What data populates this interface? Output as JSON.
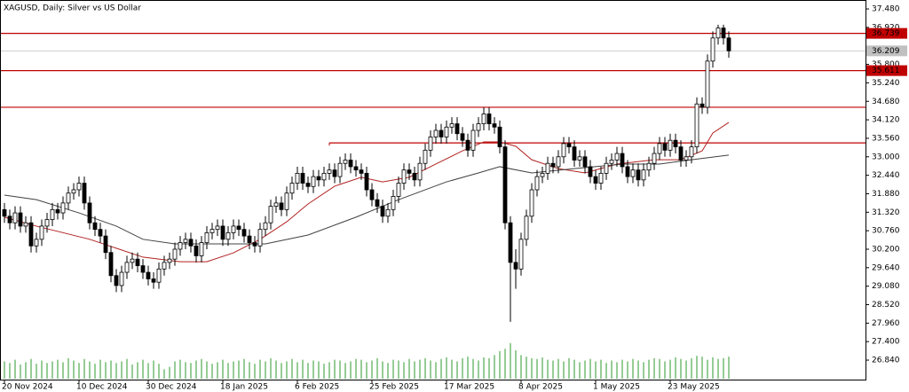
{
  "chart_data": {
    "type": "candlestick",
    "title": "XAGUSD, Daily:  Silver vs US Dollar",
    "up_color": "#ffffff",
    "down_color": "#000000",
    "volume_color": "#2e9a2e",
    "ylim": [
      26.25,
      37.75
    ],
    "yticks": [
      {
        "value": 37.48,
        "label": "37.480"
      },
      {
        "value": 36.92,
        "label": "36.920"
      },
      {
        "value": 35.8,
        "label": "35.800"
      },
      {
        "value": 35.24,
        "label": "35.240"
      },
      {
        "value": 34.68,
        "label": "34.680"
      },
      {
        "value": 34.12,
        "label": "34.120"
      },
      {
        "value": 33.56,
        "label": "33.560"
      },
      {
        "value": 33.0,
        "label": "33.000"
      },
      {
        "value": 32.44,
        "label": "32.440"
      },
      {
        "value": 31.88,
        "label": "31.880"
      },
      {
        "value": 31.32,
        "label": "31.320"
      },
      {
        "value": 30.76,
        "label": "30.760"
      },
      {
        "value": 30.2,
        "label": "30.200"
      },
      {
        "value": 29.64,
        "label": "29.640"
      },
      {
        "value": 29.08,
        "label": "29.080"
      },
      {
        "value": 28.52,
        "label": "28.520"
      },
      {
        "value": 27.96,
        "label": "27.960"
      },
      {
        "value": 27.4,
        "label": "27.400"
      },
      {
        "value": 26.84,
        "label": "26.840"
      }
    ],
    "xticks": [
      {
        "value": 0,
        "label": "20 Nov 2024"
      },
      {
        "value": 14,
        "label": "10 Dec 2024"
      },
      {
        "value": 27,
        "label": "30 Dec 2024"
      },
      {
        "value": 41,
        "label": "18 Jan 2025"
      },
      {
        "value": 55,
        "label": "6 Feb 2025"
      },
      {
        "value": 69,
        "label": "25 Feb 2025"
      },
      {
        "value": 83,
        "label": "17 Mar 2025"
      },
      {
        "value": 97,
        "label": "8 Apr 2025"
      },
      {
        "value": 111,
        "label": "1 May 2025"
      },
      {
        "value": 125,
        "label": "23 May 2025"
      }
    ],
    "open": [
      31.4,
      31.2,
      31.0,
      31.3,
      30.9,
      31.0,
      30.3,
      30.5,
      30.9,
      31.1,
      31.4,
      31.3,
      31.6,
      31.9,
      32.0,
      32.2,
      31.6,
      31.0,
      30.8,
      30.6,
      30.1,
      29.4,
      29.1,
      29.5,
      29.8,
      29.9,
      29.7,
      29.5,
      29.3,
      29.2,
      29.6,
      29.8,
      29.9,
      30.2,
      30.4,
      30.5,
      30.3,
      30.0,
      30.4,
      30.7,
      30.8,
      30.9,
      30.5,
      30.7,
      30.9,
      30.8,
      30.6,
      30.4,
      30.3,
      30.8,
      31.0,
      31.5,
      31.6,
      31.4,
      31.9,
      32.2,
      32.5,
      32.2,
      32.1,
      32.4,
      32.3,
      32.5,
      32.6,
      32.4,
      32.8,
      32.9,
      32.7,
      32.6,
      32.5,
      32.0,
      31.7,
      31.5,
      31.2,
      31.4,
      31.8,
      32.2,
      32.6,
      32.5,
      32.3,
      32.8,
      33.2,
      33.6,
      33.8,
      33.6,
      33.9,
      34.0,
      33.7,
      33.5,
      33.2,
      33.8,
      34.0,
      34.3,
      34.0,
      33.9,
      33.3,
      31.0,
      29.8,
      29.6,
      30.5,
      31.2,
      32.0,
      32.4,
      32.5,
      32.8,
      32.7,
      33.0,
      33.4,
      33.3,
      32.9,
      33.0,
      32.7,
      32.4,
      32.2,
      32.5,
      32.8,
      32.9,
      33.1,
      32.7,
      32.4,
      32.6,
      32.3,
      32.6,
      32.8,
      33.1,
      33.4,
      33.2,
      33.5,
      33.3,
      32.9,
      33.0,
      33.3,
      34.6,
      34.5,
      35.9,
      36.6,
      36.9,
      36.6
    ],
    "high": [
      31.6,
      31.4,
      31.5,
      31.5,
      31.2,
      31.2,
      30.7,
      31.1,
      31.3,
      31.6,
      31.6,
      31.8,
      32.1,
      32.2,
      32.4,
      32.4,
      31.8,
      31.2,
      31.0,
      30.8,
      30.3,
      29.6,
      29.7,
      30.0,
      30.1,
      30.1,
      29.9,
      29.7,
      29.5,
      29.8,
      30.0,
      30.1,
      30.4,
      30.6,
      30.7,
      30.7,
      30.5,
      30.6,
      30.9,
      31.0,
      31.1,
      31.1,
      30.9,
      31.1,
      31.1,
      31.0,
      30.8,
      30.6,
      31.0,
      31.2,
      31.7,
      31.8,
      31.8,
      32.1,
      32.4,
      32.7,
      32.7,
      32.4,
      32.6,
      32.6,
      32.7,
      32.8,
      32.8,
      33.0,
      33.1,
      33.1,
      32.9,
      32.8,
      32.7,
      32.2,
      31.9,
      31.7,
      31.6,
      32.0,
      32.4,
      32.8,
      32.8,
      32.7,
      33.0,
      33.4,
      33.8,
      34.0,
      34.0,
      34.1,
      34.2,
      34.2,
      33.9,
      33.7,
      34.0,
      34.2,
      34.5,
      34.5,
      34.2,
      34.1,
      33.5,
      31.2,
      30.2,
      30.7,
      31.4,
      32.2,
      32.6,
      32.7,
      33.0,
      33.0,
      33.2,
      33.6,
      33.6,
      33.5,
      33.2,
      33.2,
      32.9,
      32.6,
      32.7,
      33.0,
      33.1,
      33.3,
      33.3,
      32.9,
      32.8,
      32.8,
      32.8,
      33.0,
      33.3,
      33.6,
      33.6,
      33.7,
      33.7,
      33.5,
      33.2,
      33.5,
      34.8,
      34.8,
      36.1,
      36.8,
      37.0,
      37.0,
      36.8
    ],
    "low": [
      31.0,
      30.8,
      30.8,
      30.7,
      30.7,
      30.1,
      30.1,
      30.3,
      30.7,
      30.9,
      31.1,
      31.1,
      31.4,
      31.7,
      31.8,
      31.4,
      30.8,
      30.6,
      30.4,
      29.9,
      29.2,
      28.9,
      28.9,
      29.3,
      29.6,
      29.5,
      29.3,
      29.1,
      29.0,
      29.0,
      29.4,
      29.6,
      29.7,
      30.0,
      30.2,
      30.1,
      29.8,
      29.8,
      30.2,
      30.5,
      30.6,
      30.3,
      30.3,
      30.5,
      30.6,
      30.4,
      30.2,
      30.1,
      30.1,
      30.6,
      30.8,
      31.3,
      31.2,
      31.2,
      31.7,
      32.0,
      32.0,
      31.9,
      31.9,
      32.1,
      32.1,
      32.3,
      32.2,
      32.2,
      32.6,
      32.5,
      32.4,
      32.3,
      31.8,
      31.5,
      31.3,
      31.0,
      31.0,
      31.2,
      31.6,
      32.0,
      32.3,
      32.1,
      32.1,
      32.6,
      33.0,
      33.4,
      33.4,
      33.4,
      33.7,
      33.5,
      33.3,
      33.0,
      33.0,
      33.6,
      33.8,
      33.8,
      33.7,
      33.1,
      30.8,
      28.0,
      29.0,
      29.4,
      30.3,
      31.0,
      31.8,
      32.2,
      32.3,
      32.5,
      32.5,
      32.8,
      33.1,
      32.7,
      32.7,
      32.5,
      32.2,
      32.0,
      32.0,
      32.3,
      32.6,
      32.7,
      32.5,
      32.2,
      32.2,
      32.1,
      32.1,
      32.4,
      32.6,
      32.9,
      33.0,
      33.0,
      33.1,
      32.7,
      32.7,
      32.8,
      33.1,
      34.3,
      34.3,
      35.7,
      36.4,
      36.4,
      36.0
    ],
    "close": [
      31.2,
      31.0,
      31.3,
      30.9,
      31.0,
      30.3,
      30.5,
      30.9,
      31.1,
      31.4,
      31.3,
      31.6,
      31.9,
      32.0,
      32.2,
      31.6,
      31.0,
      30.8,
      30.6,
      30.1,
      29.4,
      29.1,
      29.5,
      29.8,
      29.9,
      29.7,
      29.5,
      29.3,
      29.2,
      29.6,
      29.8,
      29.9,
      30.2,
      30.4,
      30.5,
      30.3,
      30.0,
      30.4,
      30.7,
      30.8,
      30.9,
      30.5,
      30.7,
      30.9,
      30.8,
      30.6,
      30.4,
      30.3,
      30.8,
      31.0,
      31.5,
      31.6,
      31.4,
      31.9,
      32.2,
      32.5,
      32.2,
      32.1,
      32.4,
      32.3,
      32.5,
      32.6,
      32.4,
      32.8,
      32.9,
      32.7,
      32.6,
      32.5,
      32.0,
      31.7,
      31.5,
      31.2,
      31.4,
      31.8,
      32.2,
      32.6,
      32.5,
      32.3,
      32.8,
      33.2,
      33.6,
      33.8,
      33.6,
      33.9,
      34.0,
      33.7,
      33.5,
      33.2,
      33.8,
      34.0,
      34.3,
      34.0,
      33.9,
      33.3,
      31.0,
      29.8,
      29.6,
      30.5,
      31.2,
      32.0,
      32.4,
      32.5,
      32.8,
      32.7,
      33.0,
      33.4,
      33.3,
      32.9,
      33.0,
      32.7,
      32.4,
      32.2,
      32.5,
      32.8,
      32.9,
      33.1,
      32.7,
      32.4,
      32.6,
      32.3,
      32.6,
      32.8,
      33.1,
      33.4,
      33.2,
      33.5,
      33.3,
      32.9,
      33.0,
      33.3,
      34.6,
      34.5,
      35.9,
      36.6,
      36.9,
      36.6,
      36.21
    ],
    "volume": [
      22,
      20,
      24,
      18,
      21,
      25,
      19,
      23,
      20,
      22,
      24,
      21,
      26,
      23,
      20,
      25,
      22,
      19,
      24,
      21,
      23,
      20,
      22,
      25,
      18,
      21,
      24,
      20,
      23,
      19,
      12,
      15,
      22,
      24,
      21,
      20,
      23,
      25,
      22,
      19,
      21,
      24,
      20,
      22,
      23,
      25,
      21,
      19,
      24,
      22,
      26,
      23,
      20,
      22,
      25,
      21,
      24,
      20,
      23,
      22,
      19,
      21,
      24,
      23,
      20,
      22,
      25,
      24,
      21,
      23,
      26,
      22,
      20,
      24,
      23,
      21,
      25,
      22,
      24,
      26,
      23,
      21,
      25,
      27,
      24,
      22,
      26,
      28,
      25,
      23,
      27,
      26,
      30,
      35,
      38,
      45,
      36,
      30,
      28,
      26,
      25,
      27,
      24,
      23,
      25,
      22,
      26,
      24,
      21,
      23,
      25,
      22,
      24,
      20,
      23,
      21,
      24,
      22,
      25,
      23,
      21,
      24,
      26,
      25,
      22,
      24,
      27,
      25,
      23,
      26,
      29,
      28,
      24,
      27,
      25,
      26,
      28
    ],
    "moving_averages": [
      {
        "color": "#b22222",
        "x": [
          0,
          6,
          16,
          21,
          26,
          33,
          38,
          43,
          48,
          53,
          57,
          62,
          67,
          71,
          76,
          81,
          86,
          90,
          93,
          96,
          99,
          104,
          109,
          115,
          122,
          127,
          131,
          133,
          136
        ],
        "values": [
          31.17,
          30.9,
          30.5,
          30.23,
          29.96,
          29.82,
          29.82,
          30.09,
          30.5,
          31.03,
          31.57,
          32.11,
          32.38,
          32.24,
          32.38,
          32.78,
          33.18,
          33.45,
          33.45,
          33.32,
          32.91,
          32.64,
          32.51,
          32.78,
          32.91,
          32.91,
          33.18,
          33.72,
          34.04
        ]
      },
      {
        "color": "#404040",
        "x": [
          0,
          6,
          14,
          21,
          26,
          32,
          41,
          49,
          57,
          66,
          74,
          83,
          89,
          93,
          99,
          107,
          116,
          123,
          129,
          136
        ],
        "values": [
          31.84,
          31.7,
          31.3,
          30.9,
          30.5,
          30.36,
          30.36,
          30.36,
          30.63,
          31.17,
          31.7,
          32.24,
          32.51,
          32.7,
          32.51,
          32.64,
          32.78,
          32.78,
          32.91,
          33.05
        ]
      }
    ],
    "levels": [
      {
        "value": 36.739,
        "label": "36.739",
        "color": "#c00000"
      },
      {
        "value": 35.611,
        "label": "35.611",
        "color": "#c00000"
      },
      {
        "value": 34.5,
        "color": "#c00000"
      },
      {
        "value": 33.42,
        "from": 61,
        "color": "#c00000"
      }
    ],
    "bid": {
      "value": 36.209,
      "label": "36.209",
      "color": "#c0c0c0"
    }
  }
}
